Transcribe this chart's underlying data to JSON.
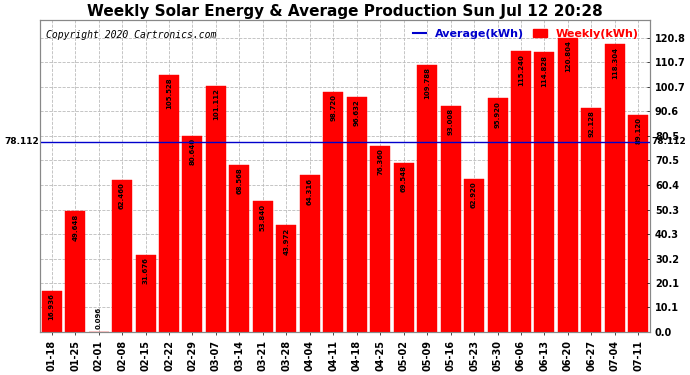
{
  "title": "Weekly Solar Energy & Average Production Sun Jul 12 20:28",
  "copyright": "Copyright 2020 Cartronics.com",
  "average_label": "Average(kWh)",
  "weekly_label": "Weekly(kWh)",
  "average_value": 78.112,
  "categories": [
    "01-18",
    "01-25",
    "02-01",
    "02-08",
    "02-15",
    "02-22",
    "02-29",
    "03-07",
    "03-14",
    "03-21",
    "03-28",
    "04-04",
    "04-11",
    "04-18",
    "04-25",
    "05-02",
    "05-09",
    "05-16",
    "05-23",
    "05-30",
    "06-06",
    "06-13",
    "06-20",
    "06-27",
    "07-04",
    "07-11"
  ],
  "values": [
    16.936,
    49.648,
    0.096,
    62.46,
    31.676,
    105.528,
    80.64,
    101.112,
    68.568,
    53.84,
    43.972,
    64.316,
    98.72,
    96.632,
    76.36,
    69.548,
    109.788,
    93.008,
    62.92,
    95.92,
    115.24,
    114.828,
    120.804,
    92.128,
    118.304,
    89.12
  ],
  "bar_color": "#ff0000",
  "average_line_color": "#0000cc",
  "background_color": "#ffffff",
  "plot_bg_color": "#ffffff",
  "grid_color": "#aaaaaa",
  "ytick_labels": [
    "0.0",
    "10.1",
    "20.1",
    "30.2",
    "40.3",
    "50.3",
    "60.4",
    "70.5",
    "80.5",
    "90.6",
    "100.7",
    "110.7",
    "120.8"
  ],
  "yticks": [
    0,
    10.1,
    20.1,
    30.2,
    40.3,
    50.3,
    60.4,
    70.5,
    80.5,
    90.6,
    100.7,
    110.7,
    120.8
  ],
  "ylim_max": 128,
  "title_fontsize": 11,
  "tick_fontsize": 7,
  "bar_label_fontsize": 5,
  "copyright_fontsize": 7,
  "legend_fontsize": 8
}
